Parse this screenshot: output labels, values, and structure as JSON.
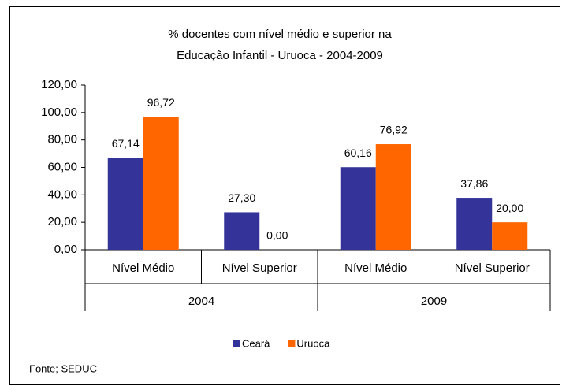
{
  "chart_data": {
    "type": "bar",
    "title": [
      "% docentes com nível médio e superior na",
      "Educação Infantil - Uruoca - 2004-2009"
    ],
    "categories": [
      "Nível Médio",
      "Nível Superior",
      "Nível Médio",
      "Nível Superior"
    ],
    "group_labels": [
      "2004",
      "2009"
    ],
    "series": [
      {
        "name": "Ceará",
        "color": "#333399",
        "values": [
          67.14,
          27.3,
          60.16,
          37.86
        ],
        "value_labels": [
          "67,14",
          "27,30",
          "60,16",
          "37,86"
        ]
      },
      {
        "name": "Uruoca",
        "color": "#ff6600",
        "values": [
          96.72,
          0.0,
          76.92,
          20.0
        ],
        "value_labels": [
          "96,72",
          "0,00",
          "76,92",
          "20,00"
        ]
      }
    ],
    "ylim": [
      0,
      120
    ],
    "yticks": [
      {
        "value": 0,
        "label": "0,00"
      },
      {
        "value": 20,
        "label": "20,00"
      },
      {
        "value": 40,
        "label": "40,00"
      },
      {
        "value": 60,
        "label": "60,00"
      },
      {
        "value": 80,
        "label": "80,00"
      },
      {
        "value": 100,
        "label": "100,00"
      },
      {
        "value": 120,
        "label": "120,00"
      }
    ],
    "legend": "bottom",
    "source": "Fonte; SEDUC"
  }
}
